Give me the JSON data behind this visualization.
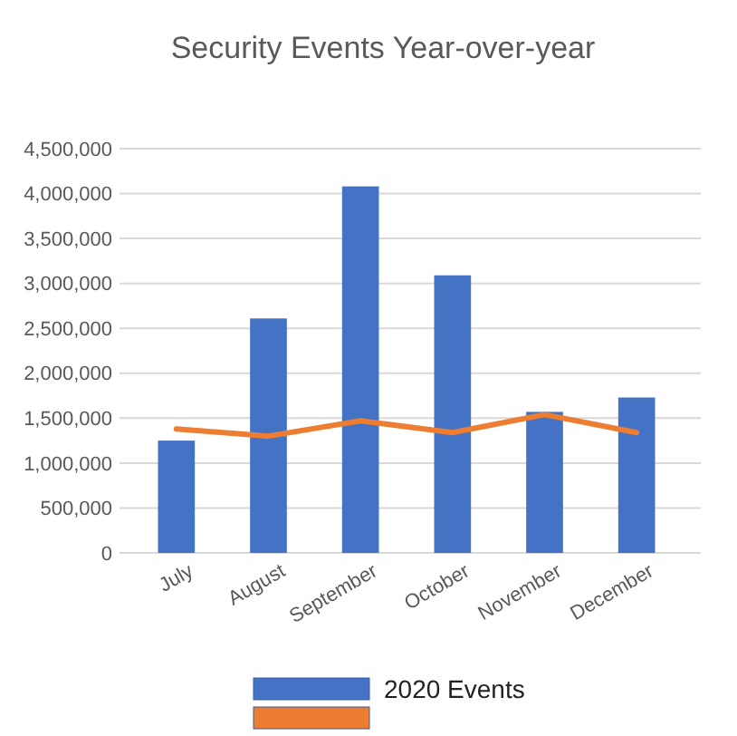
{
  "chart_data": {
    "type": "bar",
    "title": "Security Events Year-over-year",
    "categories": [
      "July",
      "August",
      "September",
      "October",
      "November",
      "December"
    ],
    "series": [
      {
        "name": "2020 Events",
        "color": "#4472c4",
        "values": [
          1250000,
          2610000,
          4080000,
          3090000,
          1570000,
          1730000
        ]
      },
      {
        "name": null,
        "type": "line",
        "color": "#ed7d31",
        "values": [
          1380000,
          1300000,
          1470000,
          1340000,
          1540000,
          1340000
        ]
      }
    ],
    "ylim": [
      0,
      4500000
    ],
    "yticks": [
      {
        "value": 0,
        "label": "0"
      },
      {
        "value": 500000,
        "label": "500,000"
      },
      {
        "value": 1000000,
        "label": "1,000,000"
      },
      {
        "value": 1500000,
        "label": "1,500,000"
      },
      {
        "value": 2000000,
        "label": "2,000,000"
      },
      {
        "value": 2500000,
        "label": "2,500,000"
      },
      {
        "value": 3000000,
        "label": "3,000,000"
      },
      {
        "value": 3500000,
        "label": "3,500,000"
      },
      {
        "value": 4000000,
        "label": "4,000,000"
      },
      {
        "value": 4500000,
        "label": "4,500,000"
      }
    ],
    "grid": true,
    "legend": "bottom"
  }
}
